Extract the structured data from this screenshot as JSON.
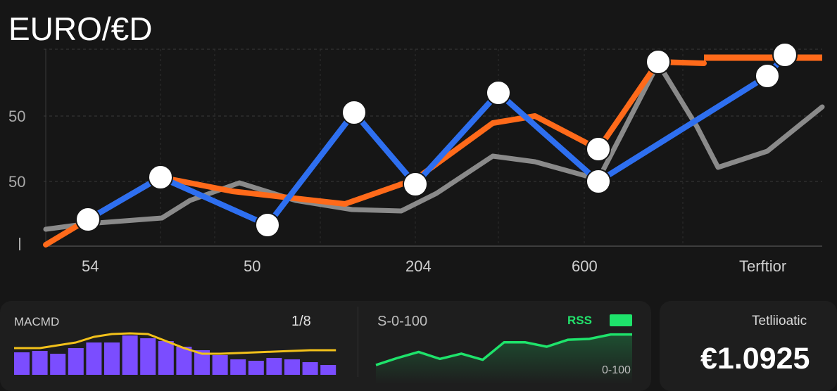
{
  "header": {
    "title": "EURO/€D"
  },
  "chart_data": {
    "type": "line",
    "title": "EURO/€D",
    "y_tick_labels": [
      "50",
      "50"
    ],
    "x_tick_labels": [
      "54",
      "50",
      "204",
      "600",
      "Terftior"
    ],
    "series": [
      {
        "color": "#2e6ff0",
        "points": [
          [
            125,
            312
          ],
          [
            228,
            252
          ],
          [
            380,
            320
          ],
          [
            503,
            160
          ],
          [
            590,
            262
          ],
          [
            708,
            132
          ],
          [
            850,
            258
          ],
          [
            1090,
            108
          ],
          [
            1115,
            78
          ]
        ]
      },
      {
        "color": "#ff6a1a",
        "points": [
          [
            65,
            348
          ],
          [
            125,
            312
          ],
          [
            228,
            252
          ],
          [
            330,
            272
          ],
          [
            490,
            290
          ],
          [
            590,
            255
          ],
          [
            700,
            175
          ],
          [
            760,
            165
          ],
          [
            850,
            212
          ],
          [
            935,
            88
          ],
          [
            1000,
            90
          ]
        ]
      },
      {
        "color": "#8a8a8a",
        "points": [
          [
            65,
            326
          ],
          [
            125,
            318
          ],
          [
            230,
            310
          ],
          [
            270,
            285
          ],
          [
            340,
            260
          ],
          [
            420,
            285
          ],
          [
            500,
            298
          ],
          [
            570,
            300
          ],
          [
            620,
            275
          ],
          [
            700,
            222
          ],
          [
            760,
            230
          ],
          [
            850,
            255
          ],
          [
            935,
            90
          ],
          [
            990,
            180
          ],
          [
            1020,
            238
          ],
          [
            1090,
            215
          ],
          [
            1168,
            152
          ]
        ]
      }
    ],
    "markers": [
      [
        125,
        312
      ],
      [
        228,
        252
      ],
      [
        380,
        320
      ],
      [
        503,
        160
      ],
      [
        590,
        262
      ],
      [
        708,
        132
      ],
      [
        850,
        258
      ],
      [
        850,
        212
      ],
      [
        935,
        88
      ],
      [
        1090,
        108
      ],
      [
        1115,
        78
      ]
    ]
  },
  "macd": {
    "label": "MACMD",
    "count": "1/8",
    "bars": [
      32,
      34,
      30,
      38,
      46,
      46,
      56,
      52,
      48,
      40,
      35,
      28,
      22,
      20,
      24,
      22,
      18,
      14
    ],
    "line": [
      38,
      38,
      42,
      46,
      54,
      58,
      59,
      58,
      48,
      38,
      30,
      30,
      31,
      32,
      33,
      34,
      35,
      35
    ]
  },
  "rsi": {
    "label": "S-0-100",
    "legend": "RSS",
    "range_label": "0-100",
    "values": [
      8,
      24,
      38,
      22,
      34,
      20,
      60,
      60,
      50,
      66,
      68,
      78,
      78
    ]
  },
  "price": {
    "label": "Tetliioatic",
    "value": "€1.0925"
  }
}
